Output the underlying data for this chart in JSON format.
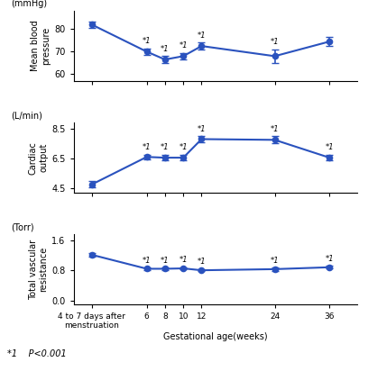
{
  "line_color": "#2A52BE",
  "x_positions": [
    0,
    3,
    4,
    5,
    6,
    10,
    13
  ],
  "x_tick_positions": [
    0,
    3,
    4,
    5,
    6,
    10,
    13
  ],
  "x_labels": [
    "4 to 7 days after\nmenstruation",
    "6",
    "8",
    "10",
    "12",
    "24",
    "36"
  ],
  "x_label_bottom": "Gestational age(weeks)",
  "mbp_ylabel": "Mean blood\npressure",
  "mbp_unit": "(mmHg)",
  "mbp_values": [
    82.0,
    70.0,
    66.5,
    68.0,
    72.5,
    68.0,
    74.5
  ],
  "mbp_errors": [
    1.5,
    1.5,
    1.5,
    1.5,
    1.5,
    3.0,
    2.0
  ],
  "mbp_sig": [
    false,
    true,
    true,
    true,
    true,
    true,
    false
  ],
  "mbp_ylim": [
    57,
    88
  ],
  "mbp_yticks": [
    60,
    70,
    80
  ],
  "co_ylabel": "Cardiac\noutput",
  "co_unit": "(L/min)",
  "co_values": [
    4.75,
    6.6,
    6.55,
    6.55,
    7.8,
    7.75,
    6.55
  ],
  "co_errors": [
    0.2,
    0.15,
    0.2,
    0.2,
    0.2,
    0.25,
    0.2
  ],
  "co_sig": [
    false,
    true,
    true,
    true,
    true,
    true,
    true
  ],
  "co_ylim": [
    4.2,
    8.9
  ],
  "co_yticks": [
    4.5,
    6.5,
    8.5
  ],
  "tvr_ylabel": "Total vascular\nresistance",
  "tvr_unit": "(Torr)",
  "tvr_values": [
    1.21,
    0.84,
    0.84,
    0.85,
    0.8,
    0.83,
    0.88
  ],
  "tvr_errors": [
    0.04,
    0.03,
    0.03,
    0.03,
    0.03,
    0.04,
    0.04
  ],
  "tvr_sig": [
    false,
    true,
    true,
    true,
    true,
    true,
    true
  ],
  "tvr_ylim": [
    -0.1,
    1.75
  ],
  "tvr_yticks": [
    0.0,
    0.8,
    1.6
  ],
  "footnote": "*1    P<0.001"
}
